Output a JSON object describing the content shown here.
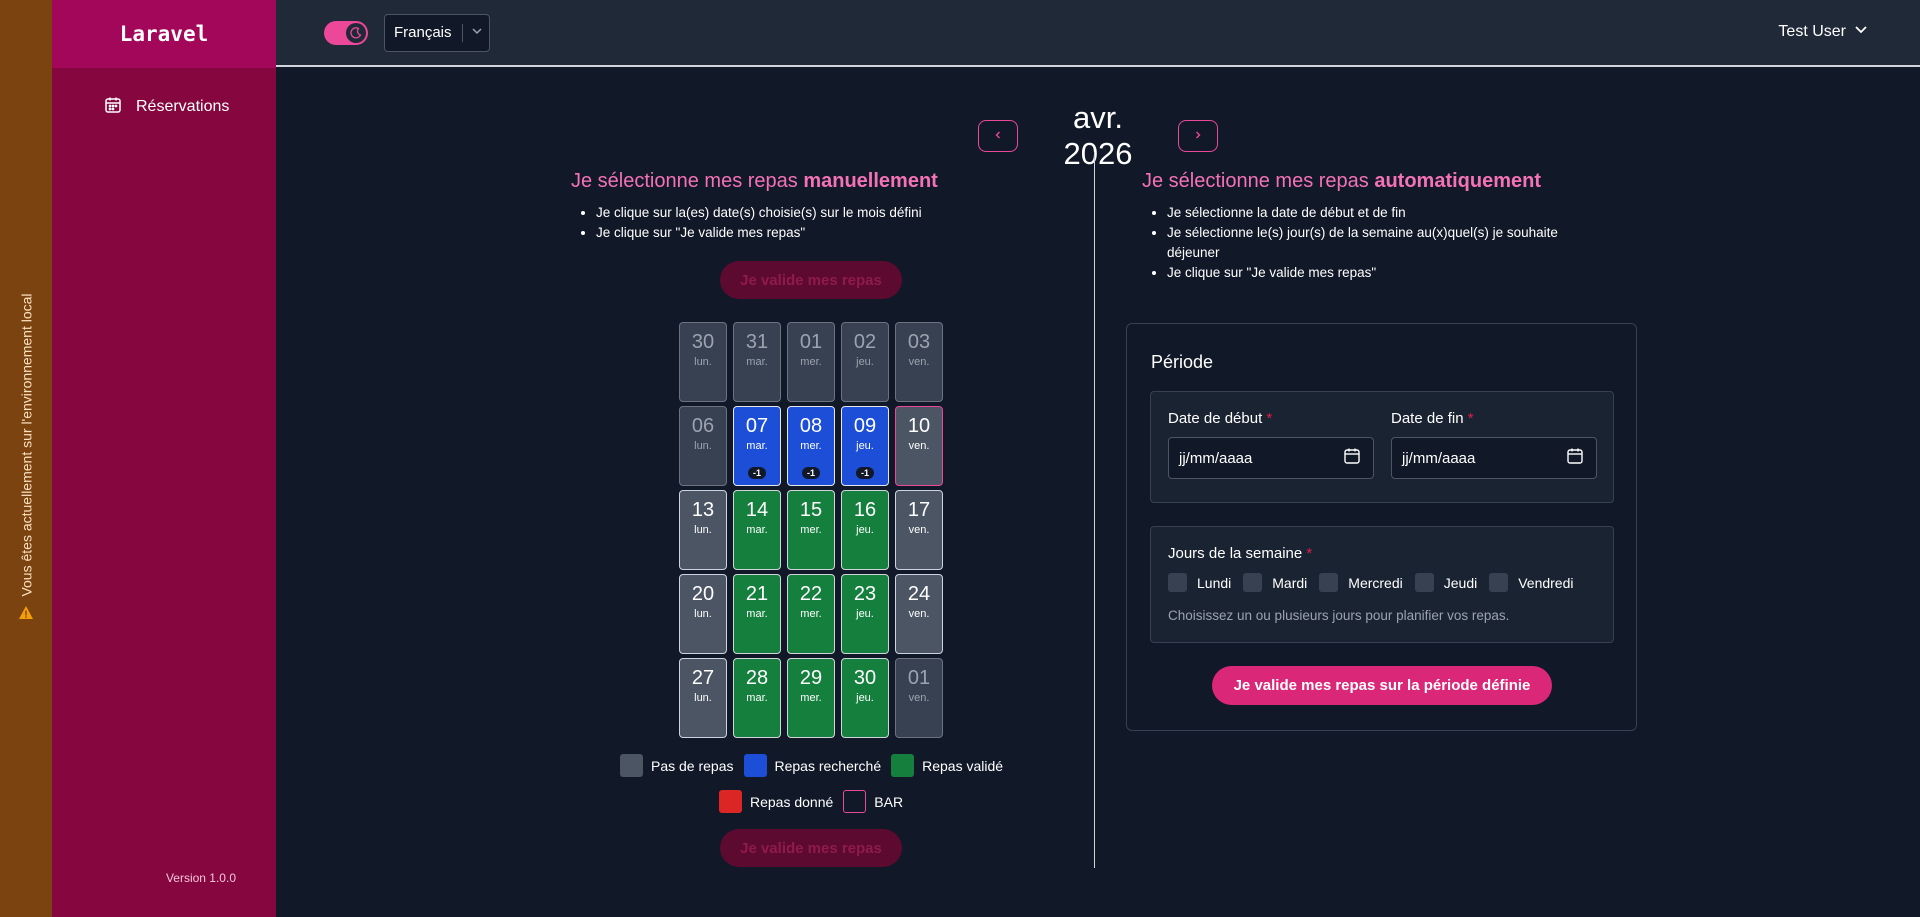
{
  "env_banner": {
    "text": "Vous êtes actuellement sur l'environnement local",
    "icon": "warning-icon"
  },
  "sidebar": {
    "brand": "Laravel",
    "items": [
      {
        "label": "Réservations",
        "icon": "calendar-icon"
      }
    ],
    "version": "Version 1.0.0"
  },
  "topbar": {
    "theme_toggle": "moon-icon",
    "language": "Français",
    "user": "Test User"
  },
  "month": {
    "label": "avr. 2026",
    "prev": "‹",
    "next": "›"
  },
  "manual": {
    "title_prefix": "Je sélectionne mes repas ",
    "title_strong": "manuellement",
    "steps": [
      "Je clique sur la(es) date(s) choisie(s) sur le mois défini",
      "Je clique sur \"Je valide mes repas\""
    ],
    "validate_label": "Je valide mes repas"
  },
  "calendar": {
    "days": [
      {
        "num": "30",
        "dow": "lun.",
        "state": "out"
      },
      {
        "num": "31",
        "dow": "mar.",
        "state": "out"
      },
      {
        "num": "01",
        "dow": "mer.",
        "state": "out"
      },
      {
        "num": "02",
        "dow": "jeu.",
        "state": "out"
      },
      {
        "num": "03",
        "dow": "ven.",
        "state": "out"
      },
      {
        "num": "06",
        "dow": "lun.",
        "state": "out"
      },
      {
        "num": "07",
        "dow": "mar.",
        "state": "searched",
        "badge": "-1"
      },
      {
        "num": "08",
        "dow": "mer.",
        "state": "searched",
        "badge": "-1"
      },
      {
        "num": "09",
        "dow": "jeu.",
        "state": "searched",
        "badge": "-1"
      },
      {
        "num": "10",
        "dow": "ven.",
        "state": "bar"
      },
      {
        "num": "13",
        "dow": "lun.",
        "state": "none"
      },
      {
        "num": "14",
        "dow": "mar.",
        "state": "validated"
      },
      {
        "num": "15",
        "dow": "mer.",
        "state": "validated"
      },
      {
        "num": "16",
        "dow": "jeu.",
        "state": "validated"
      },
      {
        "num": "17",
        "dow": "ven.",
        "state": "none"
      },
      {
        "num": "20",
        "dow": "lun.",
        "state": "none"
      },
      {
        "num": "21",
        "dow": "mar.",
        "state": "validated"
      },
      {
        "num": "22",
        "dow": "mer.",
        "state": "validated"
      },
      {
        "num": "23",
        "dow": "jeu.",
        "state": "validated"
      },
      {
        "num": "24",
        "dow": "ven.",
        "state": "none"
      },
      {
        "num": "27",
        "dow": "lun.",
        "state": "none"
      },
      {
        "num": "28",
        "dow": "mar.",
        "state": "validated"
      },
      {
        "num": "29",
        "dow": "mer.",
        "state": "validated"
      },
      {
        "num": "30",
        "dow": "jeu.",
        "state": "validated"
      },
      {
        "num": "01",
        "dow": "ven.",
        "state": "out"
      }
    ]
  },
  "legend": {
    "none": "Pas de repas",
    "searched": "Repas recherché",
    "validated": "Repas validé",
    "given": "Repas donné",
    "bar": "BAR",
    "colors": {
      "none": "#4b5563",
      "searched": "#1d4ed8",
      "validated": "#15803d",
      "given": "#dc2626",
      "bar": "#ec4899"
    }
  },
  "auto": {
    "title_prefix": "Je sélectionne mes repas ",
    "title_strong": "automatiquement",
    "steps": [
      "Je sélectionne la date de début et de fin",
      "Je sélectionne le(s) jour(s) de la semaine au(x)quel(s) je souhaite déjeuner",
      "Je clique sur \"Je valide mes repas\""
    ],
    "period_title": "Période",
    "start_label": "Date de début",
    "end_label": "Date de fin",
    "date_placeholder": "jj/mm/aaaa",
    "required": "*",
    "weekdays_label": "Jours de la semaine",
    "weekdays": [
      "Lundi",
      "Mardi",
      "Mercredi",
      "Jeudi",
      "Vendredi"
    ],
    "help": "Choisissez un ou plusieurs jours pour planifier vos repas.",
    "submit": "Je valide mes repas sur la période définie"
  }
}
